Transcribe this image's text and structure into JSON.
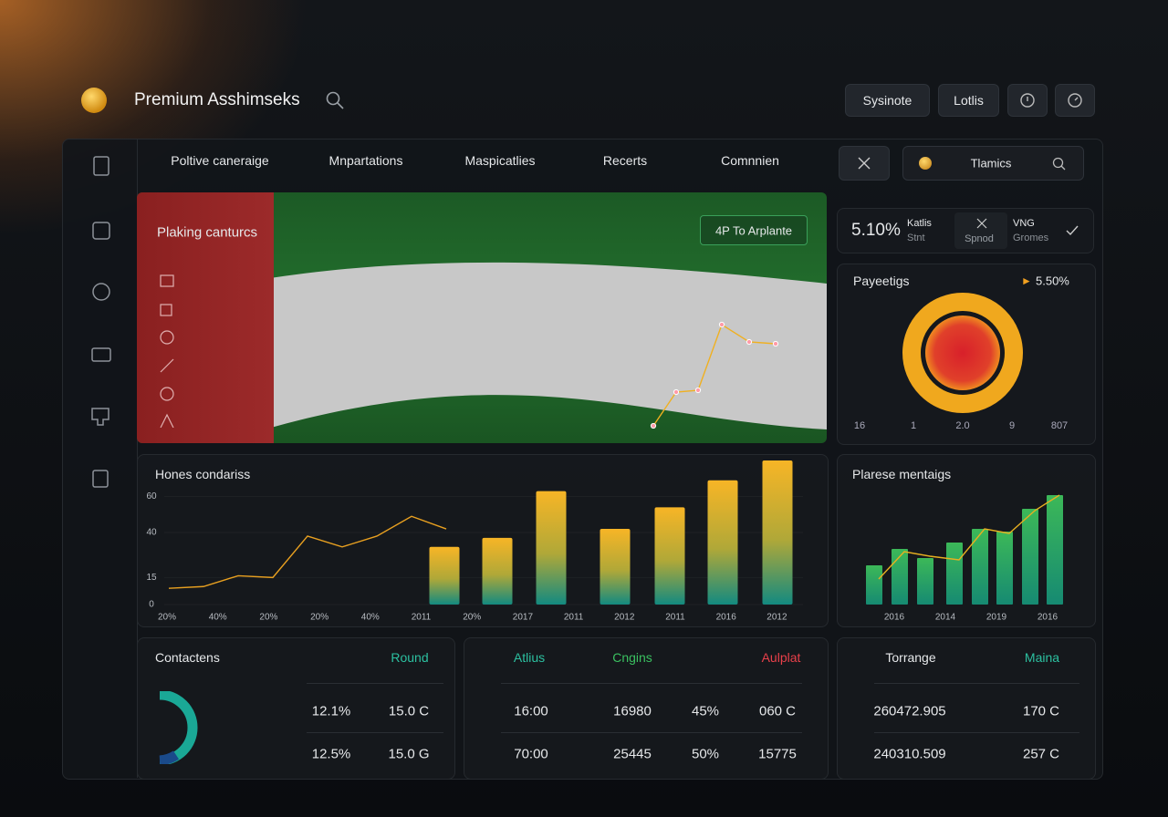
{
  "header": {
    "title": "Premium Asshimseks",
    "buttons": [
      "Sysinote",
      "Lotlis"
    ]
  },
  "nav": {
    "tabs": [
      "Poltive caneraige",
      "Mnpartations",
      "Maspicatlies",
      "Recerts",
      "Comnnien"
    ],
    "search": "Tlamics"
  },
  "hero": {
    "title": "Plaking canturcs",
    "button": "4P To Arplante",
    "line": [
      0,
      37,
      39,
      111,
      92,
      90
    ]
  },
  "stats": {
    "value": "5.10%",
    "items": [
      {
        "label": "Katlis",
        "sub": "Stnt"
      },
      {
        "label": "Spnod"
      },
      {
        "label": "VNG",
        "sub": "Gromes"
      }
    ]
  },
  "ring_panel": {
    "title": "Payeetigs",
    "value": "5.50%",
    "labels": [
      "16",
      "1",
      "2.0",
      "9",
      "807"
    ]
  },
  "main_chart": {
    "title": "Hones condariss",
    "ylim": [
      0,
      80
    ],
    "yticks": [
      0,
      15,
      40,
      60
    ],
    "x_labels": [
      "20%",
      "40%",
      "20%",
      "20%",
      "40%",
      "2011",
      "20%",
      "2017",
      "2011",
      "2012",
      "2011",
      "2016",
      "2012"
    ],
    "line": [
      9,
      10,
      16,
      15,
      38,
      32,
      38,
      49,
      42
    ],
    "bars": [
      32,
      37,
      63,
      42,
      54,
      69,
      80
    ]
  },
  "side_chart": {
    "title": "Plarese mentaigs",
    "ylim": [
      0,
      120
    ],
    "x_labels": [
      "2016",
      "2014",
      "2019",
      "2016"
    ],
    "line": [
      28,
      58,
      53,
      49,
      83,
      78,
      103,
      120
    ],
    "bars": [
      43,
      61,
      51,
      68,
      83,
      80,
      105,
      120
    ]
  },
  "tables": [
    {
      "headers": [
        "Contactens",
        "Round"
      ],
      "rows": [
        [
          "12.1%",
          "15.0 C"
        ],
        [
          "12.5%",
          "15.0 G"
        ]
      ]
    },
    {
      "headers": [
        "Atlius",
        "Cngins",
        "Aulplat"
      ],
      "rows": [
        [
          "16:00",
          "16980",
          "45%",
          "060 C"
        ],
        [
          "70:00",
          "25445",
          "50%",
          "15775"
        ]
      ]
    },
    {
      "headers": [
        "Torrange",
        "Maina"
      ],
      "rows": [
        [
          "260472.905",
          "170 C"
        ],
        [
          "240310.509",
          "257 C"
        ]
      ]
    }
  ]
}
